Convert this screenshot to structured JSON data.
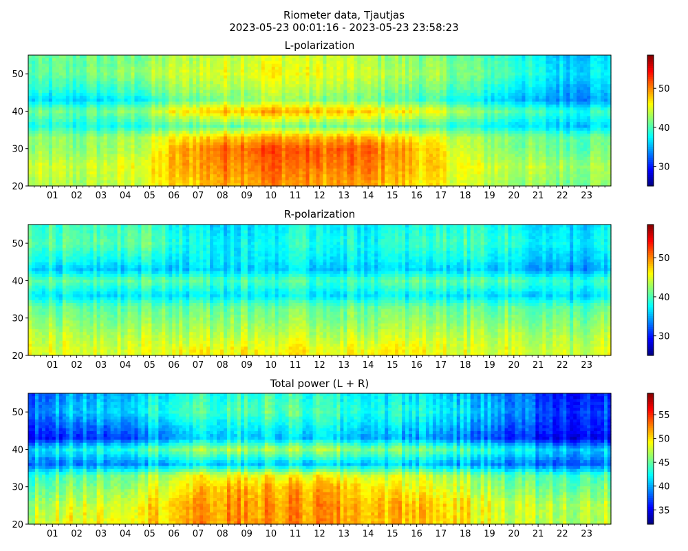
{
  "figure": {
    "title_line1": "Riometer data, Tjautjas",
    "title_line2": "2023-05-23 00:01:16 - 2023-05-23 23:58:23"
  },
  "chart_data": [
    {
      "type": "heatmap",
      "title": "L-polarization",
      "xlabel": "",
      "ylabel": "",
      "x_tick_labels": [
        "01",
        "02",
        "03",
        "04",
        "05",
        "06",
        "07",
        "08",
        "09",
        "10",
        "11",
        "12",
        "13",
        "14",
        "15",
        "16",
        "17",
        "18",
        "19",
        "20",
        "21",
        "22",
        "23"
      ],
      "xlim_hours": [
        0,
        24
      ],
      "ylim": [
        20,
        55
      ],
      "y_ticks": [
        20,
        30,
        40,
        50
      ],
      "colorbar": {
        "colormap": "jet",
        "range": [
          25,
          58.5
        ],
        "ticks": [
          30,
          40,
          50
        ]
      },
      "z_grid": {
        "hours": [
          0,
          2,
          4,
          5,
          6,
          8,
          10,
          12,
          14,
          16,
          17.5,
          18.5,
          20,
          21.5,
          23,
          24
        ],
        "levels": [
          55,
          50,
          45,
          43,
          40,
          36,
          33,
          30,
          25,
          21
        ],
        "values": [
          [
            40,
            41,
            41,
            42,
            43,
            44,
            45,
            44,
            43,
            42,
            41,
            40,
            39,
            36,
            36,
            37
          ],
          [
            40,
            41,
            42,
            43,
            44,
            45,
            46,
            45,
            44,
            43,
            42,
            41,
            40,
            37,
            37,
            38
          ],
          [
            38,
            38,
            39,
            40,
            42,
            43,
            44,
            43,
            42,
            41,
            40,
            39,
            37,
            35,
            35,
            36
          ],
          [
            36,
            36,
            37,
            38,
            40,
            42,
            43,
            42,
            41,
            40,
            38,
            37,
            36,
            34,
            34,
            35
          ],
          [
            41,
            41,
            42,
            43,
            46,
            48,
            49,
            48,
            47,
            46,
            44,
            42,
            41,
            39,
            39,
            40
          ],
          [
            38,
            38,
            38,
            39,
            40,
            41,
            42,
            41,
            41,
            40,
            39,
            38,
            37,
            36,
            36,
            37
          ],
          [
            42,
            42,
            43,
            44,
            46,
            48,
            49,
            48,
            48,
            46,
            44,
            43,
            42,
            41,
            41,
            42
          ],
          [
            42,
            42,
            43,
            44,
            48,
            51,
            52,
            51,
            51,
            48,
            45,
            43,
            42,
            41,
            41,
            42
          ],
          [
            44,
            44,
            45,
            46,
            48,
            50,
            51,
            50,
            50,
            48,
            46,
            45,
            44,
            43,
            43,
            44
          ],
          [
            43,
            43,
            44,
            45,
            47,
            49,
            50,
            49,
            49,
            47,
            45,
            44,
            43,
            42,
            42,
            43
          ]
        ]
      }
    },
    {
      "type": "heatmap",
      "title": "R-polarization",
      "xlabel": "",
      "ylabel": "",
      "x_tick_labels": [
        "01",
        "02",
        "03",
        "04",
        "05",
        "06",
        "07",
        "08",
        "09",
        "10",
        "11",
        "12",
        "13",
        "14",
        "15",
        "16",
        "17",
        "18",
        "19",
        "20",
        "21",
        "22",
        "23"
      ],
      "xlim_hours": [
        0,
        24
      ],
      "ylim": [
        20,
        55
      ],
      "y_ticks": [
        20,
        30,
        40,
        50
      ],
      "colorbar": {
        "colormap": "jet",
        "range": [
          25,
          58.5
        ],
        "ticks": [
          30,
          40,
          50
        ]
      },
      "z_grid": {
        "hours": [
          0,
          2,
          4,
          5,
          6,
          8,
          10,
          12,
          14,
          16,
          17.5,
          18.5,
          20,
          21.5,
          23,
          24
        ],
        "levels": [
          55,
          50,
          45,
          43,
          40,
          36,
          33,
          30,
          25,
          21
        ],
        "values": [
          [
            39,
            40,
            40,
            40,
            38,
            36,
            37,
            38,
            37,
            38,
            39,
            39,
            38,
            36,
            36,
            37
          ],
          [
            40,
            41,
            41,
            41,
            39,
            37,
            38,
            39,
            38,
            39,
            40,
            40,
            39,
            37,
            37,
            38
          ],
          [
            38,
            38,
            38,
            38,
            37,
            37,
            37,
            37,
            37,
            37,
            38,
            38,
            37,
            35,
            35,
            36
          ],
          [
            36,
            36,
            36,
            36,
            36,
            36,
            36,
            36,
            36,
            36,
            36,
            36,
            36,
            34,
            34,
            35
          ],
          [
            41,
            41,
            41,
            41,
            41,
            40,
            40,
            40,
            40,
            41,
            41,
            41,
            41,
            39,
            39,
            40
          ],
          [
            37,
            37,
            37,
            37,
            37,
            37,
            37,
            37,
            37,
            37,
            37,
            37,
            37,
            36,
            36,
            37
          ],
          [
            41,
            41,
            41,
            41,
            41,
            41,
            41,
            41,
            41,
            41,
            41,
            41,
            41,
            40,
            40,
            41
          ],
          [
            42,
            42,
            42,
            42,
            42,
            42,
            42,
            42,
            42,
            42,
            42,
            42,
            42,
            41,
            41,
            42
          ],
          [
            44,
            44,
            44,
            44,
            44,
            44,
            44,
            44,
            44,
            44,
            44,
            44,
            44,
            43,
            43,
            44
          ],
          [
            45,
            45,
            45,
            45,
            46,
            46,
            46,
            46,
            46,
            46,
            45,
            45,
            45,
            44,
            44,
            45
          ]
        ]
      }
    },
    {
      "type": "heatmap",
      "title": "Total power (L + R)",
      "xlabel": "",
      "ylabel": "",
      "x_tick_labels": [
        "01",
        "02",
        "03",
        "04",
        "05",
        "06",
        "07",
        "08",
        "09",
        "10",
        "11",
        "12",
        "13",
        "14",
        "15",
        "16",
        "17",
        "18",
        "19",
        "20",
        "21",
        "22",
        "23"
      ],
      "xlim_hours": [
        0,
        24
      ],
      "ylim": [
        20,
        55
      ],
      "y_ticks": [
        20,
        30,
        40,
        50
      ],
      "colorbar": {
        "colormap": "jet",
        "range": [
          32,
          59.5
        ],
        "ticks": [
          35,
          40,
          45,
          50,
          55
        ]
      },
      "z_grid": {
        "hours": [
          0,
          2,
          4,
          5,
          6,
          8,
          10,
          12,
          14,
          16,
          17.5,
          18.5,
          20,
          21.5,
          23,
          24
        ],
        "levels": [
          55,
          50,
          45,
          43,
          40,
          36,
          33,
          30,
          25,
          21
        ],
        "values": [
          [
            38,
            40,
            41,
            42,
            43,
            43,
            44,
            43,
            42,
            42,
            41,
            40,
            39,
            36,
            36,
            37
          ],
          [
            39,
            41,
            42,
            43,
            44,
            44,
            45,
            44,
            43,
            43,
            42,
            41,
            40,
            37,
            37,
            38
          ],
          [
            37,
            38,
            39,
            40,
            41,
            42,
            42,
            42,
            41,
            41,
            40,
            39,
            38,
            36,
            36,
            37
          ],
          [
            36,
            37,
            38,
            39,
            40,
            41,
            41,
            41,
            40,
            40,
            39,
            38,
            37,
            35,
            35,
            36
          ],
          [
            42,
            43,
            44,
            45,
            46,
            47,
            47,
            47,
            46,
            46,
            45,
            44,
            43,
            41,
            41,
            42
          ],
          [
            39,
            39,
            40,
            40,
            41,
            41,
            41,
            41,
            41,
            41,
            40,
            40,
            39,
            38,
            38,
            39
          ],
          [
            44,
            45,
            46,
            47,
            48,
            49,
            49,
            49,
            48,
            48,
            47,
            46,
            45,
            44,
            44,
            45
          ],
          [
            45,
            46,
            47,
            48,
            49,
            51,
            51,
            51,
            50,
            49,
            48,
            47,
            46,
            45,
            45,
            46
          ],
          [
            47,
            48,
            49,
            50,
            51,
            52,
            52,
            52,
            51,
            51,
            50,
            49,
            48,
            47,
            47,
            48
          ],
          [
            48,
            49,
            50,
            50,
            51,
            52,
            52,
            52,
            51,
            51,
            50,
            49,
            48,
            47,
            47,
            48
          ]
        ]
      }
    }
  ]
}
